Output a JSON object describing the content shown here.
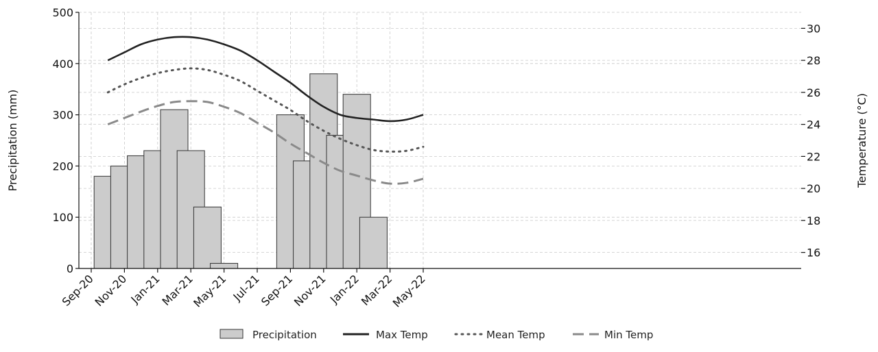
{
  "chart_data": {
    "type": "bar",
    "x_ticks": [
      "Sep-20",
      "Nov-20",
      "Jan-21",
      "Mar-21",
      "May-21",
      "Jul-21",
      "Sep-21",
      "Nov-21",
      "Jan-22",
      "Mar-22",
      "May-22"
    ],
    "left_axis": {
      "label": "Precipitation (mm)",
      "ylim": [
        0,
        500
      ],
      "ticks": [
        0,
        100,
        200,
        300,
        400,
        500
      ]
    },
    "right_axis": {
      "label": "Temperature (°C)",
      "ylim": [
        15,
        31
      ],
      "ticks": [
        16,
        18,
        20,
        22,
        24,
        26,
        28,
        30
      ]
    },
    "grid": true,
    "legend_position": "bottom",
    "series": [
      {
        "name": "Precipitation",
        "kind": "bar",
        "axis": "left",
        "color": "#cccccc",
        "points": [
          {
            "x": "2020-10",
            "y": 180
          },
          {
            "x": "2020-11",
            "y": 200
          },
          {
            "x": "2020-12",
            "y": 220
          },
          {
            "x": "2021-01",
            "y": 230
          },
          {
            "x": "2021-02",
            "y": 310
          },
          {
            "x": "2021-03",
            "y": 230
          },
          {
            "x": "2021-04",
            "y": 120
          },
          {
            "x": "2021-05",
            "y": 10
          },
          {
            "x": "2021-09",
            "y": 300
          },
          {
            "x": "2021-10",
            "y": 210
          },
          {
            "x": "2021-11",
            "y": 380
          },
          {
            "x": "2021-12",
            "y": 260
          },
          {
            "x": "2022-01",
            "y": 340
          },
          {
            "x": "2022-02",
            "y": 100
          }
        ]
      },
      {
        "name": "Max Temp",
        "kind": "line",
        "style": "solid",
        "axis": "right",
        "color": "#222222",
        "points": [
          {
            "x": "2020-10",
            "y": 28.0
          },
          {
            "x": "2020-11",
            "y": 28.5
          },
          {
            "x": "2020-12",
            "y": 29.0
          },
          {
            "x": "2021-01",
            "y": 29.3
          },
          {
            "x": "2021-02",
            "y": 29.45
          },
          {
            "x": "2021-03",
            "y": 29.45
          },
          {
            "x": "2021-04",
            "y": 29.3
          },
          {
            "x": "2021-05",
            "y": 29.0
          },
          {
            "x": "2021-06",
            "y": 28.6
          },
          {
            "x": "2021-07",
            "y": 28.0
          },
          {
            "x": "2021-08",
            "y": 27.3
          },
          {
            "x": "2021-09",
            "y": 26.6
          },
          {
            "x": "2021-10",
            "y": 25.8
          },
          {
            "x": "2021-11",
            "y": 25.1
          },
          {
            "x": "2021-12",
            "y": 24.6
          },
          {
            "x": "2022-01",
            "y": 24.4
          },
          {
            "x": "2022-02",
            "y": 24.3
          },
          {
            "x": "2022-03",
            "y": 24.2
          },
          {
            "x": "2022-04",
            "y": 24.3
          },
          {
            "x": "2022-05",
            "y": 24.6
          }
        ]
      },
      {
        "name": "Mean Temp",
        "kind": "line",
        "style": "dotted",
        "axis": "right",
        "color": "#555555",
        "points": [
          {
            "x": "2020-10",
            "y": 26.0
          },
          {
            "x": "2020-11",
            "y": 26.5
          },
          {
            "x": "2020-12",
            "y": 26.9
          },
          {
            "x": "2021-01",
            "y": 27.2
          },
          {
            "x": "2021-02",
            "y": 27.4
          },
          {
            "x": "2021-03",
            "y": 27.5
          },
          {
            "x": "2021-04",
            "y": 27.4
          },
          {
            "x": "2021-05",
            "y": 27.1
          },
          {
            "x": "2021-06",
            "y": 26.7
          },
          {
            "x": "2021-07",
            "y": 26.1
          },
          {
            "x": "2021-08",
            "y": 25.5
          },
          {
            "x": "2021-09",
            "y": 24.9
          },
          {
            "x": "2021-10",
            "y": 24.2
          },
          {
            "x": "2021-11",
            "y": 23.6
          },
          {
            "x": "2021-12",
            "y": 23.1
          },
          {
            "x": "2022-01",
            "y": 22.7
          },
          {
            "x": "2022-02",
            "y": 22.4
          },
          {
            "x": "2022-03",
            "y": 22.3
          },
          {
            "x": "2022-04",
            "y": 22.35
          },
          {
            "x": "2022-05",
            "y": 22.6
          }
        ]
      },
      {
        "name": "Min Temp",
        "kind": "line",
        "style": "dashed",
        "axis": "right",
        "color": "#8a8a8a",
        "points": [
          {
            "x": "2020-10",
            "y": 24.0
          },
          {
            "x": "2020-11",
            "y": 24.4
          },
          {
            "x": "2020-12",
            "y": 24.8
          },
          {
            "x": "2021-01",
            "y": 25.15
          },
          {
            "x": "2021-02",
            "y": 25.4
          },
          {
            "x": "2021-03",
            "y": 25.45
          },
          {
            "x": "2021-04",
            "y": 25.4
          },
          {
            "x": "2021-05",
            "y": 25.1
          },
          {
            "x": "2021-06",
            "y": 24.7
          },
          {
            "x": "2021-07",
            "y": 24.1
          },
          {
            "x": "2021-08",
            "y": 23.5
          },
          {
            "x": "2021-09",
            "y": 22.8
          },
          {
            "x": "2021-10",
            "y": 22.2
          },
          {
            "x": "2021-11",
            "y": 21.6
          },
          {
            "x": "2021-12",
            "y": 21.1
          },
          {
            "x": "2022-01",
            "y": 20.8
          },
          {
            "x": "2022-02",
            "y": 20.5
          },
          {
            "x": "2022-03",
            "y": 20.3
          },
          {
            "x": "2022-04",
            "y": 20.35
          },
          {
            "x": "2022-05",
            "y": 20.6
          }
        ]
      }
    ]
  }
}
